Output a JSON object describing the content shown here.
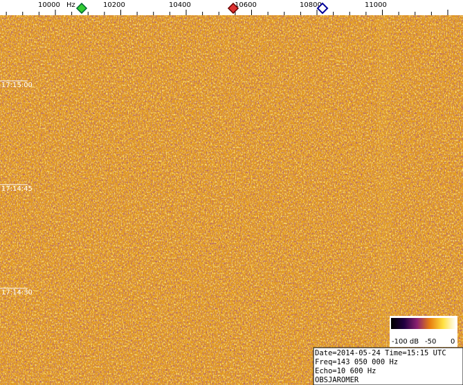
{
  "frequency_axis": {
    "ticks": [
      "10000",
      "10200",
      "10400",
      "10600",
      "10800",
      "11000"
    ],
    "unit": "Hz"
  },
  "time_labels": [
    "17:15:00",
    "17:14:45",
    "17:14:30"
  ],
  "legend": {
    "labels": [
      "-100 dB",
      "-50",
      "0"
    ]
  },
  "info": {
    "lines": [
      "Date=2014-05-24 Time=15:15 UTC",
      "Freq=143 050 000 Hz",
      "Echo=10 600 Hz",
      "OBSJAROMER"
    ]
  }
}
